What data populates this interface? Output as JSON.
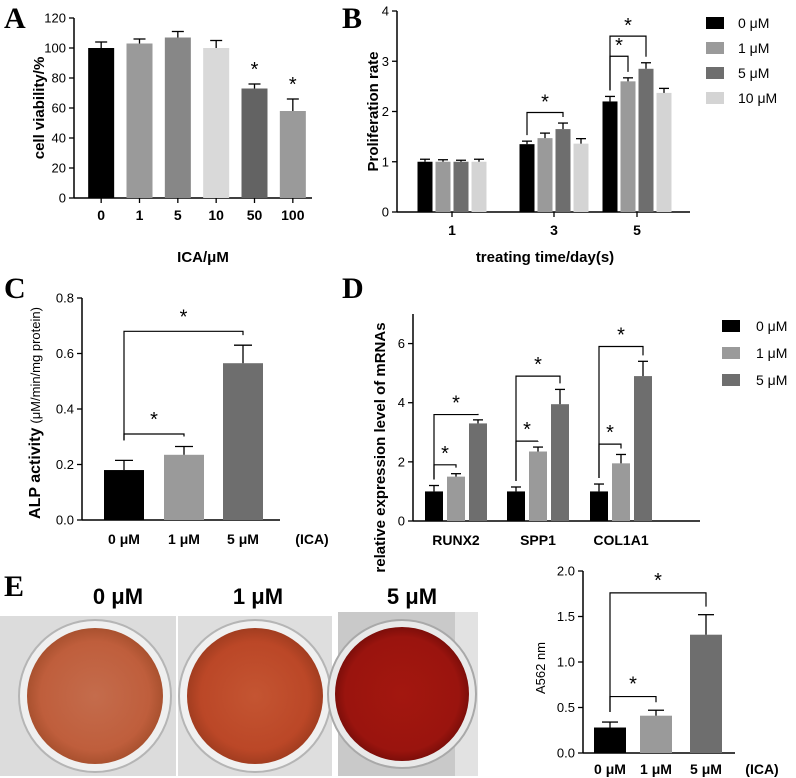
{
  "panel_labels": [
    "A",
    "B",
    "C",
    "D",
    "E"
  ],
  "chart_data": [
    {
      "id": "A",
      "type": "bar",
      "categories": [
        "0",
        "1",
        "5",
        "10",
        "50",
        "100"
      ],
      "values": [
        100,
        103,
        107,
        100,
        73,
        58
      ],
      "errors": [
        4,
        3,
        4,
        5,
        3,
        8
      ],
      "colors": [
        "#000000",
        "#9a9a9a",
        "#878787",
        "#d9d9d9",
        "#636363",
        "#9a9a9a"
      ],
      "significance": [
        false,
        false,
        false,
        false,
        true,
        true
      ],
      "marker": "*",
      "xlabel": "ICA/μM",
      "ylabel": "cell viability/%",
      "ylim": [
        0,
        120
      ],
      "yticks": [
        0,
        20,
        40,
        60,
        80,
        100,
        120
      ]
    },
    {
      "id": "B",
      "type": "bar",
      "categories": [
        "1",
        "3",
        "5"
      ],
      "series": [
        {
          "name": "0 μM",
          "color": "#000000",
          "values": [
            1.0,
            1.35,
            2.2
          ],
          "errors": [
            0.05,
            0.06,
            0.1
          ]
        },
        {
          "name": "1 μM",
          "color": "#9a9a9a",
          "values": [
            1.0,
            1.47,
            2.6
          ],
          "errors": [
            0.04,
            0.1,
            0.07
          ]
        },
        {
          "name": "5 μM",
          "color": "#6e6e6e",
          "values": [
            1.0,
            1.65,
            2.85
          ],
          "errors": [
            0.03,
            0.12,
            0.12
          ]
        },
        {
          "name": "10 μM",
          "color": "#d4d4d4",
          "values": [
            1.0,
            1.36,
            2.37
          ],
          "errors": [
            0.05,
            0.1,
            0.09
          ]
        }
      ],
      "brackets": [
        {
          "cat": 1,
          "from": 0,
          "to": 2,
          "y": 1.98,
          "marker": "*"
        },
        {
          "cat": 2,
          "from": 0,
          "to": 1,
          "y": 3.1,
          "marker": "*"
        },
        {
          "cat": 2,
          "from": 0,
          "to": 2,
          "y": 3.5,
          "marker": "*"
        }
      ],
      "xlabel": "treating time/day(s)",
      "ylabel": "Proliferation rate",
      "ylim": [
        0,
        4
      ],
      "yticks": [
        0,
        1,
        2,
        3,
        4
      ]
    },
    {
      "id": "C",
      "type": "bar",
      "categories": [
        "0 μM",
        "1 μM",
        "5 μM"
      ],
      "values": [
        0.18,
        0.235,
        0.565
      ],
      "errors": [
        0.035,
        0.03,
        0.065
      ],
      "colors": [
        "#000000",
        "#9a9a9a",
        "#6e6e6e"
      ],
      "brackets": [
        {
          "from": 0,
          "to": 1,
          "y": 0.31,
          "marker": "*"
        },
        {
          "from": 0,
          "to": 2,
          "y": 0.68,
          "marker": "*"
        }
      ],
      "suffix": "(ICA)",
      "ylabel_bold": "ALP activity",
      "ylabel_unit": "(μM/min/mg protein)",
      "ylim": [
        0,
        0.8
      ],
      "yticks": [
        "0.0",
        "0.2",
        "0.4",
        "0.6",
        "0.8"
      ]
    },
    {
      "id": "D",
      "type": "bar",
      "categories": [
        "RUNX2",
        "SPP1",
        "COL1A1"
      ],
      "series": [
        {
          "name": "0 μM",
          "color": "#000000",
          "values": [
            1.0,
            1.0,
            1.0
          ],
          "errors": [
            0.2,
            0.15,
            0.25
          ]
        },
        {
          "name": "1 μM",
          "color": "#9a9a9a",
          "values": [
            1.5,
            2.35,
            1.95
          ],
          "errors": [
            0.1,
            0.15,
            0.3
          ]
        },
        {
          "name": "5 μM",
          "color": "#6e6e6e",
          "values": [
            3.3,
            3.95,
            4.9
          ],
          "errors": [
            0.12,
            0.5,
            0.5
          ]
        }
      ],
      "brackets": [
        {
          "cat": 0,
          "from": 0,
          "to": 1,
          "y": 1.9,
          "marker": "*"
        },
        {
          "cat": 0,
          "from": 0,
          "to": 2,
          "y": 3.6,
          "marker": "*"
        },
        {
          "cat": 1,
          "from": 0,
          "to": 1,
          "y": 2.7,
          "marker": "*"
        },
        {
          "cat": 1,
          "from": 0,
          "to": 2,
          "y": 4.9,
          "marker": "*"
        },
        {
          "cat": 2,
          "from": 0,
          "to": 1,
          "y": 2.6,
          "marker": "*"
        },
        {
          "cat": 2,
          "from": 0,
          "to": 2,
          "y": 5.9,
          "marker": "*"
        }
      ],
      "ylabel": "relative expression level of mRNAs",
      "ylim": [
        0,
        7
      ],
      "yticks": [
        0,
        2,
        4,
        6
      ]
    },
    {
      "id": "E",
      "type": "bar",
      "categories": [
        "0 μM",
        "1 μM",
        "5 μM"
      ],
      "values": [
        0.28,
        0.41,
        1.3
      ],
      "errors": [
        0.06,
        0.06,
        0.22
      ],
      "colors": [
        "#000000",
        "#9a9a9a",
        "#6e6e6e"
      ],
      "brackets": [
        {
          "from": 0,
          "to": 1,
          "y": 0.62,
          "marker": "*"
        },
        {
          "from": 0,
          "to": 2,
          "y": 1.76,
          "marker": "*"
        }
      ],
      "suffix": "(ICA)",
      "ylabel": "A562 nm",
      "ylim": [
        0,
        2.0
      ],
      "yticks": [
        "0.0",
        "0.5",
        "1.0",
        "1.5",
        "2.0"
      ]
    }
  ],
  "photos": [
    {
      "label": "0 μM",
      "color": "#c0623f"
    },
    {
      "label": "1 μM",
      "color": "#bd4a2c"
    },
    {
      "label": "5 μM",
      "color": "#9e1410"
    }
  ]
}
